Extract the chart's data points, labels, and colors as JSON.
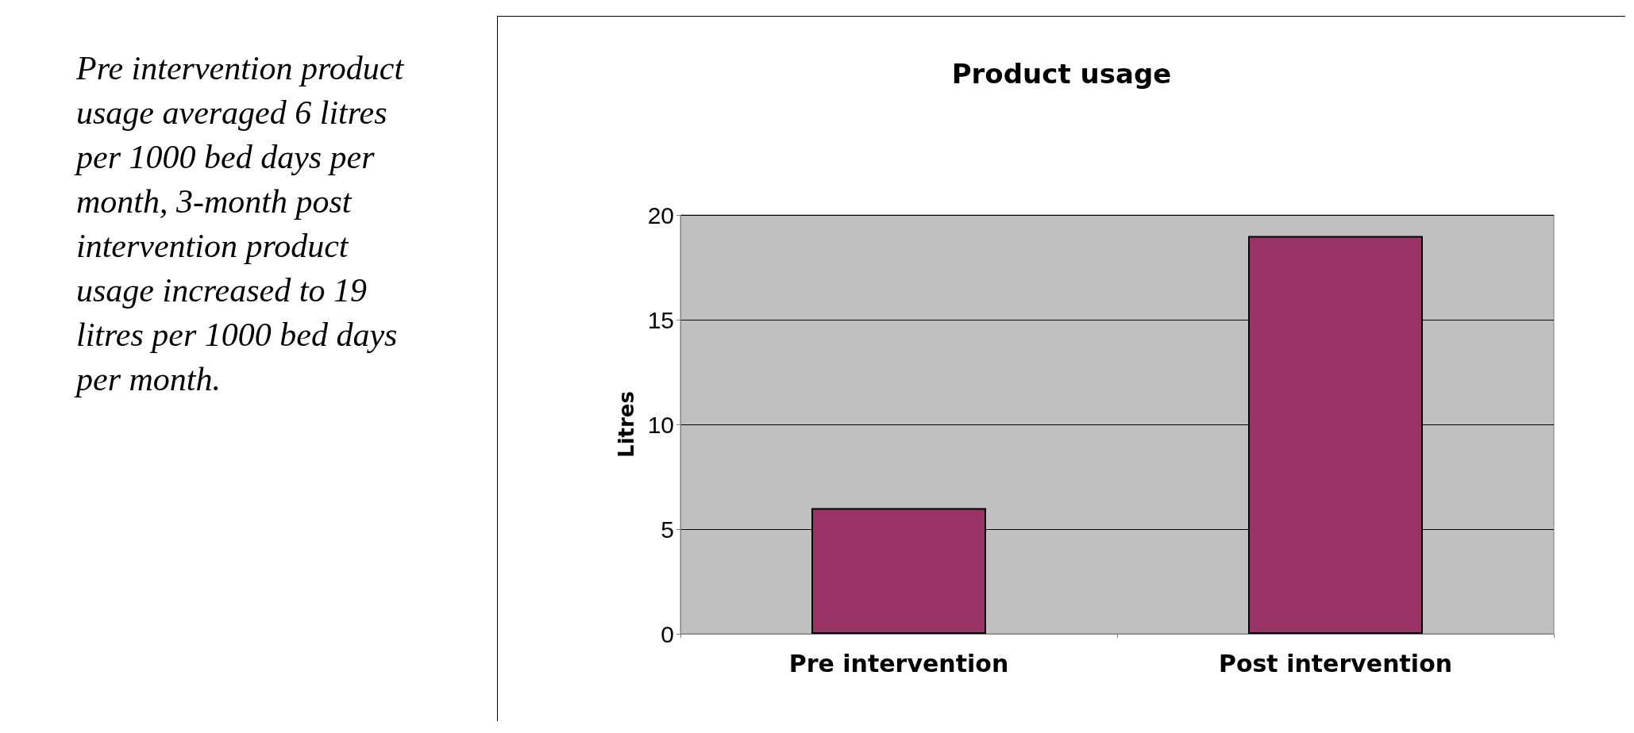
{
  "chart_data": {
    "type": "bar",
    "title": "Product usage",
    "ylabel": "Litres",
    "categories": [
      "Pre intervention",
      "Post intervention"
    ],
    "values": [
      6,
      19
    ],
    "color": "#993366",
    "ylim": [
      0,
      20
    ],
    "yticks": [
      0,
      5,
      10,
      15,
      20
    ],
    "grid": "y",
    "annotations": [
      "Pre intervention product usage averaged 6 litres per 1000 bed days per month, 3-month post intervention product usage increased to 19 litres per 1000 bed days per month."
    ]
  }
}
